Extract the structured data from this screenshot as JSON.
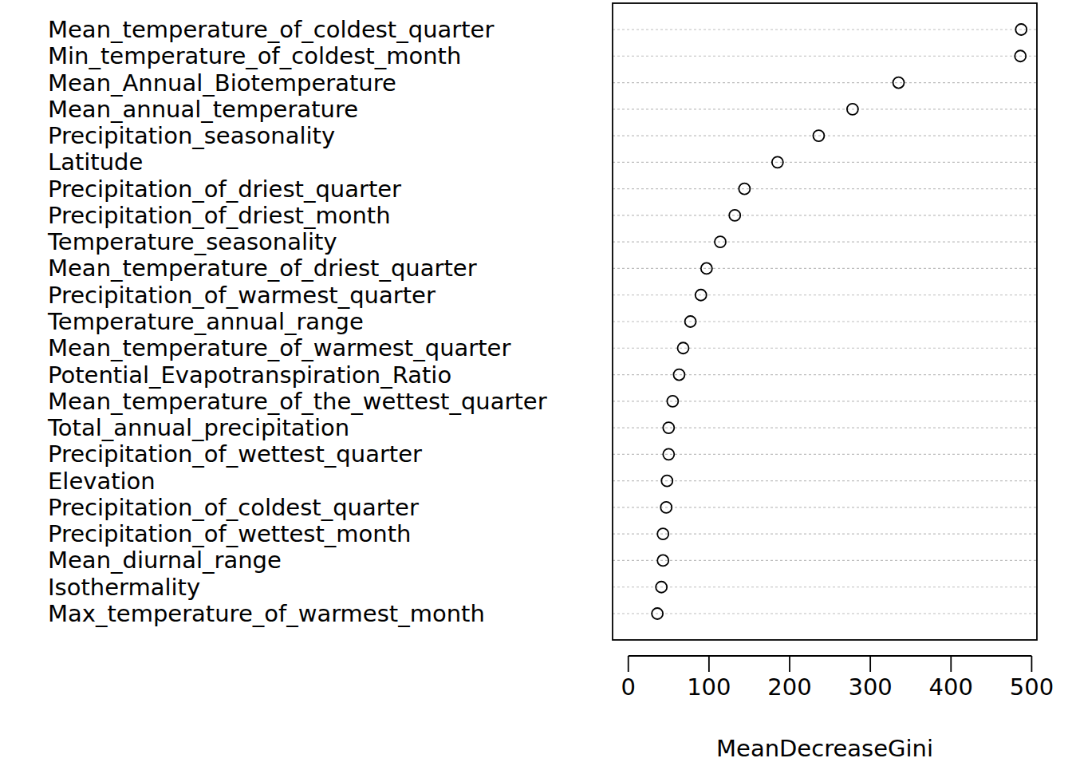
{
  "chart_data": {
    "type": "dot",
    "orientation": "horizontal",
    "x_label": "MeanDecreaseGini",
    "categories": [
      "Mean_temperature_of_coldest_quarter",
      "Min_temperature_of_coldest_month",
      "Mean_Annual_Biotemperature",
      "Mean_annual_temperature",
      "Precipitation_seasonality",
      "Latitude",
      "Precipitation_of_driest_quarter",
      "Precipitation_of_driest_month",
      "Temperature_seasonality",
      "Mean_temperature_of_driest_quarter",
      "Precipitation_of_warmest_quarter",
      "Temperature_annual_range",
      "Mean_temperature_of_warmest_quarter",
      "Potential_Evapotranspiration_Ratio",
      "Mean_temperature_of_the_wettest_quarter",
      "Total_annual_precipitation",
      "Precipitation_of_wettest_quarter",
      "Elevation",
      "Precipitation_of_coldest_quarter",
      "Precipitation_of_wettest_month",
      "Mean_diurnal_range",
      "Isothermality",
      "Max_temperature_of_warmest_month"
    ],
    "values": [
      487,
      486,
      335,
      278,
      236,
      185,
      144,
      132,
      114,
      97,
      90,
      77,
      68,
      63,
      55,
      50,
      50,
      48,
      47,
      43,
      43,
      41,
      36
    ],
    "xlim": [
      -19.5,
      506.5
    ],
    "xticks": [
      0,
      100,
      200,
      300,
      400,
      500
    ],
    "marker": "open-circle",
    "color": "#000000",
    "grid": true
  }
}
